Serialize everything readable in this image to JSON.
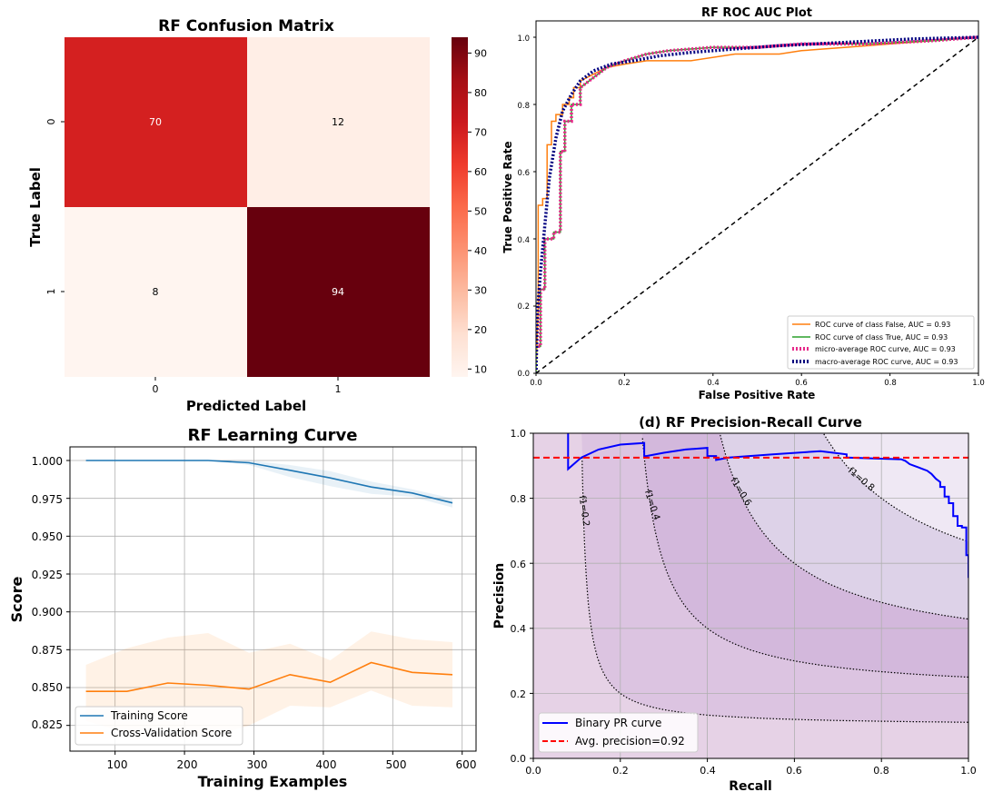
{
  "confusion": {
    "title": "RF Confusion Matrix",
    "xlabel": "Predicted Label",
    "ylabel": "True Label",
    "xticks": [
      "0",
      "1"
    ],
    "yticks": [
      "0",
      "1"
    ],
    "colorbar_ticks": [
      "10",
      "20",
      "30",
      "40",
      "50",
      "60",
      "70",
      "80",
      "90"
    ],
    "cell_colors": [
      "#d42020",
      "#ffeee6",
      "#fff5f0",
      "#67000d"
    ]
  },
  "roc": {
    "title": "RF ROC AUC Plot",
    "xlabel": "False Positive Rate",
    "ylabel": "True Positive Rate",
    "xticks": [
      "0.0",
      "0.2",
      "0.4",
      "0.6",
      "0.8",
      "1.0"
    ],
    "yticks": [
      "0.0",
      "0.2",
      "0.4",
      "0.6",
      "0.8",
      "1.0"
    ],
    "legend": [
      {
        "label": "ROC curve of class False, AUC = 0.93",
        "color": "#ff7f0e",
        "style": "solid"
      },
      {
        "label": "ROC curve of class True, AUC = 0.93",
        "color": "#2ca02c",
        "style": "solid"
      },
      {
        "label": "micro-average ROC curve, AUC = 0.93",
        "color": "#e7298a",
        "style": "dotted"
      },
      {
        "label": "macro-average ROC curve, AUC = 0.93",
        "color": "#000080",
        "style": "dotted"
      }
    ]
  },
  "learning": {
    "title": "RF Learning Curve",
    "xlabel": "Training Examples",
    "ylabel": "Score",
    "xticks": [
      "100",
      "200",
      "300",
      "400",
      "500",
      "600"
    ],
    "yticks": [
      "0.825",
      "0.850",
      "0.875",
      "0.900",
      "0.925",
      "0.950",
      "0.975",
      "1.000"
    ],
    "legend": [
      {
        "label": "Training Score",
        "color": "#1f77b4"
      },
      {
        "label": "Cross-Validation Score",
        "color": "#ff7f0e"
      }
    ]
  },
  "pr": {
    "title": "(d) RF Precision-Recall Curve",
    "xlabel": "Recall",
    "ylabel": "Precision",
    "xticks": [
      "0.0",
      "0.2",
      "0.4",
      "0.6",
      "0.8",
      "1.0"
    ],
    "yticks": [
      "0.0",
      "0.2",
      "0.4",
      "0.6",
      "0.8",
      "1.0"
    ],
    "iso_labels": [
      "f1=0.2",
      "f1=0.4",
      "f1=0.6",
      "f1=0.8"
    ],
    "legend": [
      {
        "label": "Binary PR curve",
        "color": "#0000ff",
        "style": "solid"
      },
      {
        "label": "Avg. precision=0.92",
        "color": "#ff0000",
        "style": "dashed"
      }
    ]
  },
  "chart_data": [
    {
      "type": "heatmap",
      "title": "RF Confusion Matrix",
      "xlabel": "Predicted Label",
      "ylabel": "True Label",
      "x_categories": [
        "0",
        "1"
      ],
      "y_categories": [
        "0",
        "1"
      ],
      "values": [
        [
          70,
          12
        ],
        [
          8,
          94
        ]
      ],
      "colormap": "Reds",
      "colorbar_range": [
        8,
        94
      ]
    },
    {
      "type": "line",
      "title": "RF ROC AUC Plot",
      "xlabel": "False Positive Rate",
      "ylabel": "True Positive Rate",
      "xlim": [
        0,
        1
      ],
      "ylim": [
        0,
        1
      ],
      "legend_position": "lower-right",
      "series": [
        {
          "name": "ROC curve of class False, AUC = 0.93",
          "x": [
            0,
            0.005,
            0.005,
            0.015,
            0.015,
            0.025,
            0.025,
            0.035,
            0.035,
            0.045,
            0.045,
            0.06,
            0.06,
            0.075,
            0.075,
            0.085,
            0.085,
            0.1,
            0.1,
            0.13,
            0.16,
            0.2,
            0.25,
            0.35,
            0.45,
            0.55,
            0.6,
            0.7,
            0.8,
            0.9,
            1.0
          ],
          "y": [
            0,
            0.2,
            0.5,
            0.5,
            0.52,
            0.52,
            0.68,
            0.68,
            0.75,
            0.75,
            0.77,
            0.77,
            0.8,
            0.8,
            0.82,
            0.82,
            0.85,
            0.85,
            0.87,
            0.89,
            0.91,
            0.92,
            0.93,
            0.93,
            0.95,
            0.95,
            0.96,
            0.97,
            0.98,
            0.99,
            1.0
          ]
        },
        {
          "name": "ROC curve of class True, AUC = 0.93",
          "x": [
            0,
            0,
            0.01,
            0.01,
            0.02,
            0.02,
            0.04,
            0.04,
            0.055,
            0.055,
            0.065,
            0.065,
            0.08,
            0.08,
            0.1,
            0.1,
            0.13,
            0.16,
            0.2,
            0.25,
            0.3,
            0.4,
            0.5,
            0.6,
            0.75,
            0.9,
            1.0
          ],
          "y": [
            0,
            0.08,
            0.08,
            0.25,
            0.25,
            0.4,
            0.4,
            0.42,
            0.42,
            0.66,
            0.66,
            0.75,
            0.75,
            0.8,
            0.8,
            0.85,
            0.88,
            0.91,
            0.93,
            0.95,
            0.96,
            0.97,
            0.97,
            0.98,
            0.98,
            0.99,
            1.0
          ]
        },
        {
          "name": "micro-average ROC curve, AUC = 0.93",
          "x": [
            0,
            0,
            0.01,
            0.01,
            0.02,
            0.02,
            0.04,
            0.04,
            0.055,
            0.055,
            0.065,
            0.065,
            0.08,
            0.08,
            0.1,
            0.1,
            0.13,
            0.16,
            0.2,
            0.25,
            0.3,
            0.4,
            0.5,
            0.6,
            0.75,
            0.9,
            1.0
          ],
          "y": [
            0,
            0.08,
            0.08,
            0.25,
            0.25,
            0.4,
            0.4,
            0.42,
            0.42,
            0.66,
            0.66,
            0.75,
            0.75,
            0.8,
            0.8,
            0.85,
            0.88,
            0.91,
            0.93,
            0.95,
            0.96,
            0.97,
            0.97,
            0.98,
            0.98,
            0.99,
            1.0
          ]
        },
        {
          "name": "macro-average ROC curve, AUC = 0.93",
          "x": [
            0,
            0.003,
            0.01,
            0.02,
            0.03,
            0.045,
            0.06,
            0.08,
            0.1,
            0.13,
            0.17,
            0.22,
            0.28,
            0.35,
            0.45,
            0.55,
            0.7,
            0.85,
            1.0
          ],
          "y": [
            0,
            0.18,
            0.3,
            0.44,
            0.58,
            0.7,
            0.78,
            0.83,
            0.87,
            0.9,
            0.92,
            0.93,
            0.945,
            0.955,
            0.965,
            0.975,
            0.985,
            0.995,
            1.0
          ]
        },
        {
          "name": "",
          "x": [
            0,
            1
          ],
          "y": [
            0,
            1
          ]
        }
      ]
    },
    {
      "type": "line",
      "title": "RF Learning Curve",
      "xlabel": "Training Examples",
      "ylabel": "Score",
      "xlim": [
        35,
        620
      ],
      "ylim": [
        0.808,
        1.009
      ],
      "grid": true,
      "legend_position": "lower-left",
      "series": [
        {
          "name": "Training Score",
          "x": [
            58,
            117,
            176,
            234,
            293,
            352,
            410,
            469,
            528,
            586
          ],
          "y": [
            1.0,
            1.0,
            1.0,
            1.0,
            0.9985,
            0.9935,
            0.9885,
            0.9825,
            0.9785,
            0.972
          ],
          "band_upper": [
            1.0,
            1.0,
            1.0,
            1.0,
            1.0,
            0.997,
            0.993,
            0.986,
            0.981,
            0.975
          ],
          "band_lower": [
            1.0,
            1.0,
            1.0,
            1.0,
            0.997,
            0.989,
            0.983,
            0.978,
            0.976,
            0.969
          ]
        },
        {
          "name": "Cross-Validation Score",
          "x": [
            58,
            117,
            176,
            234,
            293,
            352,
            410,
            469,
            528,
            586
          ],
          "y": [
            0.8475,
            0.8475,
            0.853,
            0.8515,
            0.849,
            0.8585,
            0.8535,
            0.8665,
            0.86,
            0.8585
          ],
          "band_upper": [
            0.865,
            0.876,
            0.883,
            0.886,
            0.873,
            0.879,
            0.868,
            0.887,
            0.882,
            0.88
          ],
          "band_lower": [
            0.828,
            0.82,
            0.823,
            0.817,
            0.825,
            0.838,
            0.837,
            0.848,
            0.838,
            0.837
          ]
        }
      ]
    },
    {
      "type": "line",
      "title": "(d) RF Precision-Recall Curve",
      "xlabel": "Recall",
      "ylabel": "Precision",
      "xlim": [
        0,
        1
      ],
      "ylim": [
        0,
        1
      ],
      "grid": true,
      "legend_position": "lower-left",
      "series": [
        {
          "name": "Binary PR curve",
          "x": [
            1.0,
            1.0,
            0.995,
            0.995,
            0.985,
            0.985,
            0.975,
            0.975,
            0.965,
            0.965,
            0.955,
            0.955,
            0.945,
            0.945,
            0.935,
            0.935,
            0.925,
            0.915,
            0.905,
            0.895,
            0.885,
            0.875,
            0.865,
            0.855,
            0.845,
            0.84,
            0.72,
            0.72,
            0.66,
            0.55,
            0.45,
            0.42,
            0.42,
            0.4,
            0.4,
            0.35,
            0.3,
            0.26,
            0.255,
            0.255,
            0.2,
            0.15,
            0.11,
            0.08,
            0.08
          ],
          "y": [
            0.555,
            0.625,
            0.625,
            0.71,
            0.71,
            0.715,
            0.715,
            0.745,
            0.745,
            0.785,
            0.785,
            0.805,
            0.805,
            0.835,
            0.835,
            0.85,
            0.86,
            0.875,
            0.885,
            0.89,
            0.895,
            0.9,
            0.905,
            0.915,
            0.92,
            0.92,
            0.925,
            0.935,
            0.945,
            0.935,
            0.925,
            0.918,
            0.93,
            0.93,
            0.955,
            0.95,
            0.94,
            0.93,
            0.93,
            0.97,
            0.965,
            0.95,
            0.925,
            0.89,
            1.0
          ]
        },
        {
          "name": "Avg. precision=0.92",
          "x": [
            0,
            1
          ],
          "y": [
            0.925,
            0.925
          ]
        }
      ],
      "iso_f1": [
        0.2,
        0.4,
        0.6,
        0.8
      ]
    }
  ]
}
